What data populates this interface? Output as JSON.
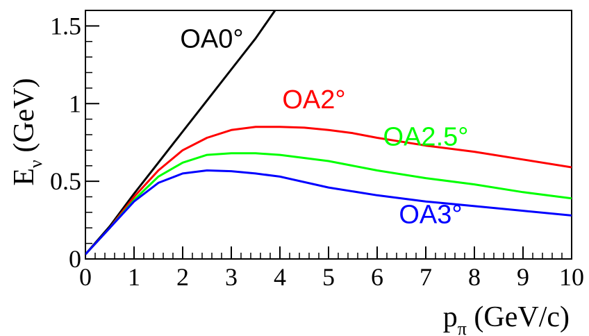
{
  "chart_data": {
    "type": "line",
    "xlabel": {
      "main": "p",
      "sub": "π",
      "unit": " (GeV/c)"
    },
    "ylabel": {
      "main": "E",
      "sub": "ν",
      "unit": " (GeV)"
    },
    "xlim": [
      0,
      10
    ],
    "ylim": [
      0,
      1.6
    ],
    "x_ticks": [
      {
        "value": 0,
        "label": "0"
      },
      {
        "value": 1,
        "label": "1"
      },
      {
        "value": 2,
        "label": "2"
      },
      {
        "value": 3,
        "label": "3"
      },
      {
        "value": 4,
        "label": "4"
      },
      {
        "value": 5,
        "label": "5"
      },
      {
        "value": 6,
        "label": "6"
      },
      {
        "value": 7,
        "label": "7"
      },
      {
        "value": 8,
        "label": "8"
      },
      {
        "value": 9,
        "label": "9"
      },
      {
        "value": 10,
        "label": "10"
      }
    ],
    "y_ticks": [
      {
        "value": 0,
        "label": "0"
      },
      {
        "value": 0.5,
        "label": "0.5"
      },
      {
        "value": 1,
        "label": "1"
      },
      {
        "value": 1.5,
        "label": "1.5"
      }
    ],
    "grid": false,
    "series": [
      {
        "name": "OA0°",
        "color": "#000000",
        "points": [
          [
            0,
            0.03
          ],
          [
            0.5,
            0.21
          ],
          [
            1,
            0.42
          ],
          [
            1.5,
            0.62
          ],
          [
            2,
            0.82
          ],
          [
            2.5,
            1.02
          ],
          [
            3,
            1.22
          ],
          [
            3.5,
            1.42
          ],
          [
            3.9,
            1.6
          ]
        ]
      },
      {
        "name": "OA2°",
        "color": "#ff0000",
        "points": [
          [
            0,
            0.03
          ],
          [
            0.5,
            0.2
          ],
          [
            1,
            0.4
          ],
          [
            1.5,
            0.57
          ],
          [
            2,
            0.7
          ],
          [
            2.5,
            0.78
          ],
          [
            3,
            0.83
          ],
          [
            3.5,
            0.85
          ],
          [
            4,
            0.85
          ],
          [
            4.5,
            0.845
          ],
          [
            5,
            0.83
          ],
          [
            5.5,
            0.81
          ],
          [
            6,
            0.78
          ],
          [
            7,
            0.73
          ],
          [
            8,
            0.69
          ],
          [
            9,
            0.64
          ],
          [
            10,
            0.59
          ]
        ]
      },
      {
        "name": "OA2.5°",
        "color": "#00ff00",
        "points": [
          [
            0,
            0.03
          ],
          [
            0.5,
            0.2
          ],
          [
            1,
            0.38
          ],
          [
            1.5,
            0.53
          ],
          [
            2,
            0.62
          ],
          [
            2.5,
            0.67
          ],
          [
            3,
            0.68
          ],
          [
            3.5,
            0.68
          ],
          [
            4,
            0.67
          ],
          [
            5,
            0.63
          ],
          [
            6,
            0.57
          ],
          [
            7,
            0.52
          ],
          [
            8,
            0.48
          ],
          [
            9,
            0.43
          ],
          [
            10,
            0.39
          ]
        ]
      },
      {
        "name": "OA3°",
        "color": "#0000ff",
        "points": [
          [
            0,
            0.03
          ],
          [
            0.5,
            0.2
          ],
          [
            1,
            0.37
          ],
          [
            1.5,
            0.49
          ],
          [
            2,
            0.55
          ],
          [
            2.5,
            0.57
          ],
          [
            3,
            0.565
          ],
          [
            3.5,
            0.55
          ],
          [
            4,
            0.53
          ],
          [
            5,
            0.46
          ],
          [
            6,
            0.41
          ],
          [
            7,
            0.37
          ],
          [
            8,
            0.34
          ],
          [
            9,
            0.31
          ],
          [
            10,
            0.28
          ]
        ]
      }
    ],
    "annotations": [
      {
        "text": "OA0°",
        "x": 2.6,
        "y": 1.36,
        "color": "#000000"
      },
      {
        "text": "OA2°",
        "x": 4.7,
        "y": 0.97,
        "color": "#ff0000"
      },
      {
        "text": "OA2.5°",
        "x": 7.0,
        "y": 0.73,
        "color": "#00ff00"
      },
      {
        "text": "OA3°",
        "x": 7.1,
        "y": 0.23,
        "color": "#0000ff"
      }
    ]
  }
}
